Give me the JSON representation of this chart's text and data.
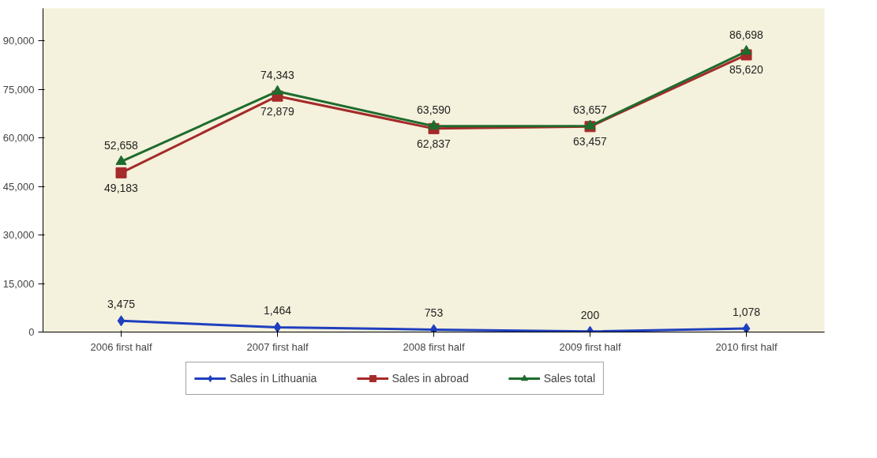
{
  "chart_data": {
    "type": "line",
    "categories": [
      "2006 first half",
      "2007 first half",
      "2008 first half",
      "2009 first half",
      "2010 first half"
    ],
    "series": [
      {
        "name": "Sales in Lithuania",
        "color": "#1f3fbf",
        "marker": "diamond",
        "values": [
          3475,
          1464,
          753,
          200,
          1078
        ],
        "value_labels": [
          "3,475",
          "1,464",
          "753",
          "200",
          "1,078"
        ]
      },
      {
        "name": "Sales in abroad",
        "color": "#a52a2a",
        "marker": "square",
        "values": [
          49183,
          72879,
          62837,
          63457,
          85620
        ],
        "value_labels": [
          "49,183",
          "72,879",
          "62,837",
          "63,457",
          "85,620"
        ]
      },
      {
        "name": "Sales total",
        "color": "#1e6b2e",
        "marker": "triangle",
        "values": [
          52658,
          74343,
          63590,
          63657,
          86698
        ],
        "value_labels": [
          "52,658",
          "74,343",
          "63,590",
          "63,657",
          "86,698"
        ]
      }
    ],
    "ylim": [
      0,
      100000
    ],
    "yticks": [
      0,
      {
        "value": 15000,
        "label": "15,000"
      },
      {
        "value": 30000,
        "label": "30,000"
      },
      {
        "value": 45000,
        "label": "45,000"
      },
      {
        "value": 60000,
        "label": "60,000"
      },
      {
        "value": 75000,
        "label": "75,000"
      },
      {
        "value": 90000,
        "label": "90,000"
      }
    ],
    "grid": false,
    "legend": "bottom",
    "line_style": "solid"
  }
}
